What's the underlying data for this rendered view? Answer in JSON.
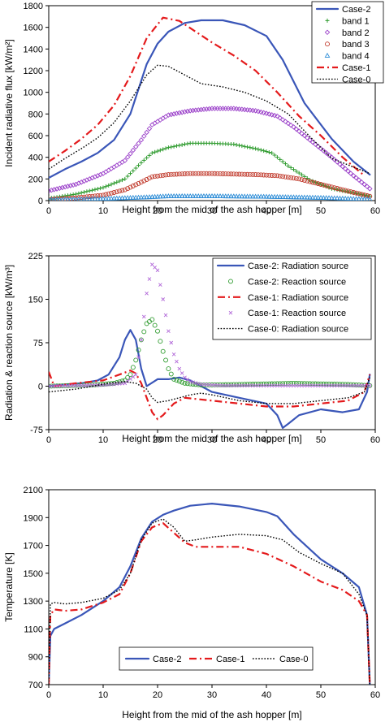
{
  "chart_data": [
    {
      "type": "line",
      "xlabel": "Height from the mid of the ash hopper [m]",
      "ylabel": "Incident radiative flux [kW/m²]",
      "xlim": [
        0,
        60
      ],
      "ylim": [
        0,
        1800
      ],
      "xticks": [
        0,
        10,
        20,
        30,
        40,
        50,
        60
      ],
      "yticks": [
        0,
        200,
        400,
        600,
        800,
        1000,
        1200,
        1400,
        1600,
        1800
      ],
      "grid": false,
      "legend": "top-right",
      "series": [
        {
          "name": "Case-2",
          "style": "solid",
          "color": "#3a56b8",
          "x": [
            0,
            3,
            6,
            9,
            12,
            15,
            18,
            20,
            22,
            25,
            28,
            32,
            36,
            40,
            43,
            47,
            52,
            56,
            59
          ],
          "y": [
            210,
            290,
            360,
            440,
            560,
            800,
            1260,
            1450,
            1560,
            1640,
            1665,
            1665,
            1620,
            1520,
            1300,
            900,
            570,
            360,
            240
          ]
        },
        {
          "name": "band 1",
          "style": "plus",
          "color": "#2e9b2e",
          "x": [
            0,
            5,
            10,
            14,
            17,
            19,
            22,
            26,
            30,
            34,
            38,
            41,
            44,
            48,
            52,
            56,
            59
          ],
          "y": [
            20,
            60,
            120,
            200,
            350,
            440,
            490,
            530,
            530,
            520,
            480,
            440,
            320,
            190,
            110,
            70,
            40
          ]
        },
        {
          "name": "band 2",
          "style": "diamond",
          "color": "#9a3fc9",
          "x": [
            0,
            5,
            10,
            14,
            17,
            19,
            22,
            26,
            30,
            34,
            38,
            42,
            45,
            48,
            52,
            56,
            59
          ],
          "y": [
            90,
            150,
            250,
            370,
            560,
            700,
            790,
            830,
            850,
            850,
            830,
            780,
            680,
            560,
            400,
            230,
            110
          ]
        },
        {
          "name": "band 3",
          "style": "circle",
          "color": "#c0392b",
          "x": [
            0,
            5,
            10,
            14,
            17,
            19,
            22,
            26,
            30,
            34,
            38,
            42,
            46,
            50,
            54,
            59
          ],
          "y": [
            10,
            25,
            50,
            100,
            170,
            220,
            240,
            250,
            250,
            245,
            240,
            230,
            200,
            150,
            100,
            40
          ]
        },
        {
          "name": "band 4",
          "style": "triangle",
          "color": "#2a8bd6",
          "x": [
            0,
            10,
            18,
            22,
            30,
            40,
            50,
            59
          ],
          "y": [
            5,
            15,
            30,
            40,
            40,
            35,
            25,
            10
          ]
        },
        {
          "name": "Case-1",
          "style": "dashdot",
          "color": "#e41a1c",
          "x": [
            0,
            3,
            6,
            9,
            12,
            15,
            18,
            21,
            24,
            27,
            30,
            34,
            38,
            42,
            46,
            50,
            54,
            58
          ],
          "y": [
            360,
            460,
            570,
            700,
            880,
            1150,
            1500,
            1690,
            1660,
            1560,
            1460,
            1340,
            1200,
            1000,
            780,
            600,
            400,
            230
          ]
        },
        {
          "name": "Case-0",
          "style": "dotted",
          "color": "#000000",
          "x": [
            0,
            3,
            6,
            9,
            12,
            15,
            18,
            20,
            22,
            25,
            28,
            32,
            36,
            40,
            44,
            48,
            52,
            56,
            59
          ],
          "y": [
            290,
            390,
            480,
            580,
            720,
            920,
            1160,
            1250,
            1240,
            1160,
            1080,
            1050,
            1000,
            920,
            800,
            590,
            390,
            310,
            250
          ]
        }
      ]
    },
    {
      "type": "line",
      "xlabel": "Height from the mid of the ash hopper [m]",
      "ylabel": "Radiation & reaction source [kW/m³]",
      "xlim": [
        0,
        60
      ],
      "ylim": [
        -75,
        225
      ],
      "xticks": [
        0,
        10,
        20,
        30,
        40,
        50,
        60
      ],
      "yticks": [
        -75,
        0,
        75,
        150,
        225
      ],
      "grid": false,
      "legend": "top-right",
      "series": [
        {
          "name": "Case-2: Radiation source",
          "style": "solid",
          "color": "#3a56b8",
          "x": [
            0,
            3,
            6,
            9,
            11,
            13,
            14,
            15,
            16,
            17,
            18,
            20,
            22,
            24,
            26,
            28,
            30,
            35,
            40,
            42,
            43,
            44,
            46,
            50,
            54,
            57,
            58.5,
            59
          ],
          "y": [
            0,
            3,
            5,
            10,
            20,
            50,
            80,
            97,
            80,
            30,
            0,
            12,
            12,
            15,
            10,
            0,
            -10,
            -20,
            -30,
            -50,
            -72,
            -65,
            -50,
            -40,
            -45,
            -40,
            -10,
            20
          ]
        },
        {
          "name": "Case-2: Reaction source",
          "style": "circle",
          "color": "#2e9b2e",
          "x": [
            0,
            8,
            12,
            14,
            15,
            16,
            17,
            18,
            19,
            20,
            21,
            22,
            23,
            25,
            28,
            35,
            45,
            55,
            59
          ],
          "y": [
            0,
            2,
            5,
            10,
            20,
            45,
            80,
            108,
            115,
            95,
            60,
            30,
            12,
            5,
            2,
            3,
            5,
            3,
            1
          ]
        },
        {
          "name": "Case-1: Radiation source",
          "style": "dashdot",
          "color": "#e41a1c",
          "x": [
            0,
            1,
            5,
            10,
            13,
            15,
            16,
            17,
            18,
            19,
            20,
            21,
            23,
            25,
            30,
            35,
            40,
            45,
            50,
            55,
            58,
            59
          ],
          "y": [
            25,
            0,
            5,
            10,
            20,
            27,
            22,
            5,
            -20,
            -45,
            -57,
            -50,
            -30,
            -20,
            -25,
            -30,
            -35,
            -35,
            -30,
            -25,
            -10,
            20
          ]
        },
        {
          "name": "Case-1: Reaction source",
          "style": "cross",
          "color": "#b168d8",
          "x": [
            0,
            10,
            14,
            16,
            17,
            18,
            19,
            20,
            21,
            22,
            23,
            24,
            25,
            26,
            28,
            32,
            40,
            50,
            59
          ],
          "y": [
            0,
            2,
            5,
            20,
            80,
            160,
            210,
            200,
            150,
            95,
            55,
            30,
            15,
            8,
            3,
            1,
            1,
            1,
            1
          ]
        },
        {
          "name": "Case-0: Radiation source",
          "style": "dotted",
          "color": "#000000",
          "x": [
            0,
            2,
            5,
            8,
            11,
            14,
            16,
            18,
            19,
            20,
            22,
            24,
            26,
            28,
            30,
            35,
            40,
            45,
            50,
            55,
            58,
            59
          ],
          "y": [
            -10,
            -8,
            -5,
            0,
            5,
            8,
            5,
            -5,
            -20,
            -28,
            -25,
            -20,
            -15,
            -12,
            -15,
            -25,
            -30,
            -30,
            -25,
            -20,
            -10,
            15
          ]
        }
      ]
    },
    {
      "type": "line",
      "xlabel": "Height from the mid of the ash hopper [m]",
      "ylabel": "Temperature [K]",
      "xlim": [
        0,
        60
      ],
      "ylim": [
        700,
        2100
      ],
      "xticks": [
        0,
        10,
        20,
        30,
        40,
        50,
        60
      ],
      "yticks": [
        700,
        900,
        1100,
        1300,
        1500,
        1700,
        1900,
        2100
      ],
      "grid": false,
      "legend": "bottom-center",
      "series": [
        {
          "name": "Case-2",
          "style": "solid",
          "color": "#3a56b8",
          "x": [
            0,
            0.3,
            1,
            3,
            6,
            10,
            13,
            15,
            17,
            19,
            21,
            23,
            26,
            30,
            35,
            40,
            42,
            45,
            50,
            54,
            57,
            58.5,
            59
          ],
          "y": [
            700,
            1050,
            1100,
            1140,
            1200,
            1300,
            1400,
            1550,
            1750,
            1870,
            1920,
            1950,
            1985,
            2000,
            1980,
            1940,
            1910,
            1780,
            1600,
            1500,
            1400,
            1200,
            700
          ]
        },
        {
          "name": "Case-1",
          "style": "dashdot",
          "color": "#e41a1c",
          "x": [
            0,
            0.3,
            1,
            3,
            6,
            10,
            13,
            15,
            17,
            19,
            21,
            23,
            25,
            27,
            30,
            35,
            40,
            45,
            50,
            54,
            57,
            58.5,
            59
          ],
          "y": [
            700,
            1200,
            1240,
            1230,
            1240,
            1290,
            1350,
            1500,
            1730,
            1830,
            1860,
            1790,
            1720,
            1690,
            1690,
            1690,
            1640,
            1550,
            1440,
            1380,
            1300,
            1200,
            700
          ]
        },
        {
          "name": "Case-0",
          "style": "dotted",
          "color": "#000000",
          "x": [
            0,
            0.3,
            1,
            3,
            6,
            10,
            13,
            15,
            17,
            19,
            21,
            23,
            25,
            27,
            30,
            35,
            40,
            43,
            46,
            50,
            54,
            57,
            58.5,
            59
          ],
          "y": [
            700,
            1280,
            1290,
            1280,
            1290,
            1320,
            1380,
            1500,
            1740,
            1860,
            1890,
            1830,
            1730,
            1740,
            1760,
            1780,
            1770,
            1740,
            1650,
            1570,
            1500,
            1350,
            1200,
            700
          ]
        }
      ]
    }
  ]
}
